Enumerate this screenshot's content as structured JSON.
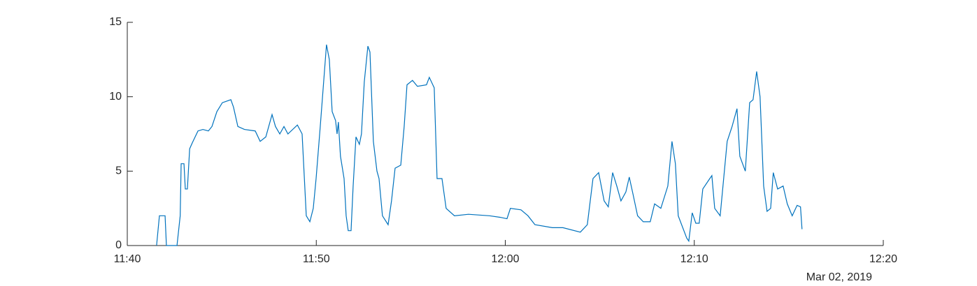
{
  "chart_data": {
    "type": "line",
    "x": [
      1.55,
      1.7,
      2.0,
      2.07,
      2.63,
      2.8,
      2.85,
      3.0,
      3.07,
      3.18,
      3.3,
      3.44,
      3.74,
      4.0,
      4.29,
      4.48,
      4.74,
      5.03,
      5.48,
      5.62,
      5.85,
      6.2,
      6.77,
      7.03,
      7.33,
      7.66,
      7.84,
      8.07,
      8.29,
      8.5,
      9.0,
      9.25,
      9.47,
      9.66,
      9.84,
      9.99,
      10.21,
      10.36,
      10.54,
      10.69,
      10.84,
      11.02,
      11.1,
      11.17,
      11.28,
      11.47,
      11.58,
      11.69,
      11.84,
      11.95,
      12.1,
      12.28,
      12.39,
      12.54,
      12.73,
      12.84,
      13.02,
      13.21,
      13.32,
      13.5,
      13.8,
      13.98,
      14.17,
      14.47,
      14.65,
      14.8,
      15.09,
      15.35,
      15.83,
      15.98,
      16.24,
      16.39,
      16.65,
      16.87,
      17.31,
      18.05,
      19.16,
      19.72,
      20.09,
      20.27,
      20.83,
      21.2,
      21.57,
      22.49,
      23.05,
      23.97,
      24.34,
      24.64,
      24.94,
      25.23,
      25.45,
      25.68,
      25.9,
      26.12,
      26.38,
      26.56,
      26.75,
      27.0,
      27.3,
      27.67,
      27.9,
      28.23,
      28.6,
      28.82,
      29.0,
      29.15,
      29.6,
      29.71,
      29.89,
      30.08,
      30.26,
      30.45,
      30.82,
      30.93,
      31.08,
      31.37,
      31.74,
      32.0,
      32.26,
      32.41,
      32.7,
      32.93,
      33.11,
      33.3,
      33.48,
      33.67,
      33.85,
      34.04,
      34.18,
      34.41,
      34.7,
      34.92,
      35.18,
      35.44,
      35.62,
      35.7
    ],
    "values": [
      0,
      2,
      2,
      0,
      0,
      2,
      5.5,
      5.5,
      3.8,
      3.8,
      6.5,
      6.9,
      7.7,
      7.8,
      7.7,
      8.0,
      9.0,
      9.6,
      9.8,
      9.3,
      8.0,
      7.8,
      7.7,
      7.0,
      7.3,
      8.8,
      8.0,
      7.5,
      8.0,
      7.5,
      8.1,
      7.5,
      2.0,
      1.6,
      2.5,
      4.5,
      8.0,
      10.5,
      13.5,
      12.5,
      9.0,
      8.4,
      7.5,
      8.3,
      6.0,
      4.5,
      2.0,
      1.0,
      1.0,
      4.0,
      7.3,
      6.8,
      7.5,
      11.0,
      13.4,
      13.0,
      7.0,
      5.0,
      4.5,
      2.0,
      1.4,
      3.0,
      5.2,
      5.4,
      8.0,
      10.8,
      11.1,
      10.7,
      10.8,
      11.3,
      10.6,
      4.5,
      4.5,
      2.5,
      2.0,
      2.1,
      2.0,
      1.9,
      1.8,
      2.5,
      2.4,
      2.0,
      1.4,
      1.2,
      1.2,
      0.9,
      1.4,
      4.5,
      4.9,
      3.0,
      2.6,
      4.9,
      4.0,
      3.0,
      3.6,
      4.6,
      3.5,
      2.0,
      1.6,
      1.6,
      2.8,
      2.5,
      4.0,
      7.0,
      5.5,
      2.0,
      0.5,
      0.3,
      2.2,
      1.5,
      1.5,
      3.8,
      4.5,
      4.7,
      2.5,
      2.0,
      7.0,
      8.0,
      9.2,
      6.0,
      5.0,
      9.6,
      9.8,
      11.7,
      10.0,
      4.0,
      2.3,
      2.5,
      4.9,
      3.8,
      4.0,
      2.8,
      2.0,
      2.7,
      2.6,
      1.1
    ],
    "color": "#0072bd",
    "xlim": [
      0,
      40
    ],
    "xticks": [
      {
        "value": 0,
        "label": "11:40"
      },
      {
        "value": 10,
        "label": "11:50"
      },
      {
        "value": 20,
        "label": "12:00"
      },
      {
        "value": 30,
        "label": "12:10"
      },
      {
        "value": 40,
        "label": "12:20"
      }
    ],
    "ylim": [
      0,
      15
    ],
    "yticks": [
      0,
      5,
      10,
      15
    ],
    "date_label": "Mar 02, 2019"
  }
}
